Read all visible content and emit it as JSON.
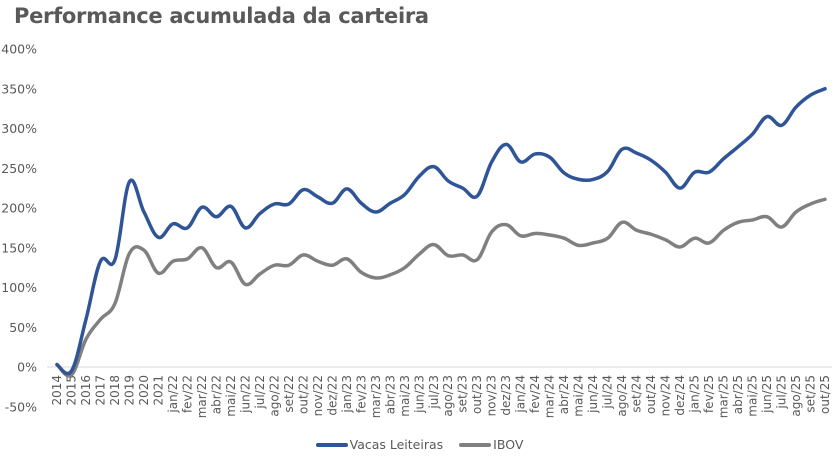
{
  "chart_data": {
    "type": "line",
    "title": "Performance acumulada da carteira",
    "xlabel": "",
    "ylabel": "",
    "ylim": [
      -50,
      400
    ],
    "yticks": [
      -50,
      0,
      50,
      100,
      150,
      200,
      250,
      300,
      350,
      400
    ],
    "ytick_labels": [
      "-50%",
      "0%",
      "50%",
      "100%",
      "150%",
      "200%",
      "250%",
      "300%",
      "350%",
      "400%"
    ],
    "grid": false,
    "legend_position": "bottom",
    "categories": [
      "2014",
      "2015",
      "2016",
      "2017",
      "2018",
      "2019",
      "2020",
      "2021",
      "jan/22",
      "fev/22",
      "mar/22",
      "abr/22",
      "mai/22",
      "jun/22",
      "jul/22",
      "ago/22",
      "set/22",
      "out/22",
      "nov/22",
      "dez/22",
      "jan/23",
      "fev/23",
      "mar/23",
      "abr/23",
      "mai/23",
      "jun/23",
      "jul/23",
      "ago/23",
      "set/23",
      "out/23",
      "nov/23",
      "dez/23",
      "jan/24",
      "fev/24",
      "mar/24",
      "abr/24",
      "mai/24",
      "jun/24",
      "jul/24",
      "ago/24",
      "set/24",
      "out/24",
      "nov/24",
      "dez/24",
      "jan/25",
      "fev/25",
      "mar/25",
      "abr/25",
      "mai/25",
      "jun/25",
      "jul/25",
      "ago/25",
      "set/25",
      "out/25"
    ],
    "series": [
      {
        "name": "Vacas Leiteiras",
        "color": "#2F5597",
        "values": [
          3,
          -5,
          60,
          133,
          135,
          233,
          195,
          163,
          180,
          175,
          201,
          189,
          202,
          175,
          193,
          205,
          205,
          223,
          214,
          206,
          224,
          206,
          195,
          206,
          217,
          240,
          252,
          234,
          225,
          215,
          258,
          280,
          258,
          268,
          264,
          244,
          236,
          236,
          246,
          274,
          269,
          260,
          245,
          225,
          245,
          245,
          262,
          277,
          293,
          315,
          304,
          327,
          342,
          350
        ]
      },
      {
        "name": "IBOV",
        "color": "#808080",
        "values": [
          3,
          -10,
          35,
          60,
          80,
          143,
          147,
          118,
          133,
          136,
          150,
          125,
          132,
          104,
          117,
          128,
          128,
          141,
          133,
          128,
          136,
          119,
          112,
          116,
          125,
          142,
          154,
          140,
          141,
          135,
          170,
          179,
          165,
          168,
          166,
          162,
          153,
          156,
          162,
          182,
          172,
          167,
          160,
          151,
          162,
          156,
          172,
          182,
          185,
          189,
          176,
          195,
          205,
          211
        ]
      }
    ]
  }
}
